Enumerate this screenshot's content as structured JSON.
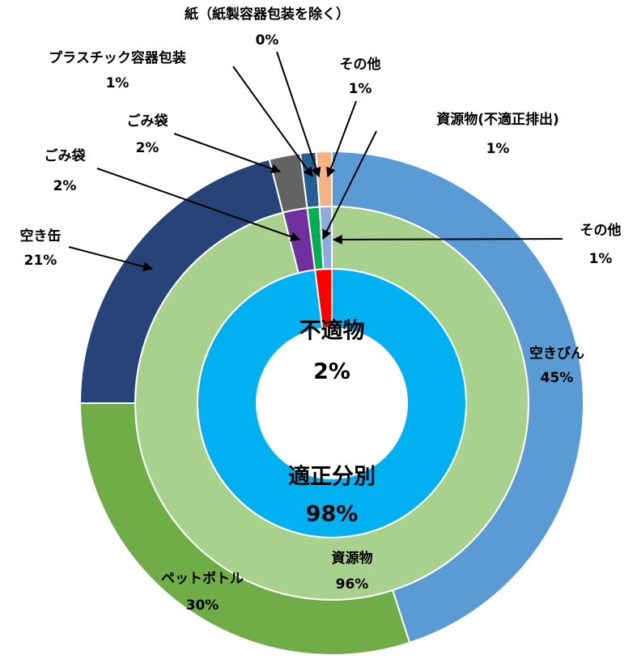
{
  "chart_data": {
    "type": "donut",
    "rings": [
      {
        "categories": [
          "適正分別",
          "不適物"
        ],
        "values": [
          98,
          2
        ],
        "value_labels": [
          "98%",
          "2%"
        ],
        "colors": [
          "#00b0f0",
          "#ff0000"
        ]
      },
      {
        "categories": [
          "資源物",
          "ごみ袋",
          "資源物(不適正排出)",
          "その他"
        ],
        "values": [
          96,
          2,
          1,
          1
        ],
        "value_labels": [
          "96%",
          "2%",
          "1%",
          "1%"
        ],
        "colors": [
          "#a9d18e",
          "#7030a0",
          "#00b050",
          "#8faadc"
        ]
      },
      {
        "categories": [
          "空きびん",
          "ペットボトル",
          "空き缶",
          "ごみ袋",
          "プラスチック容器包装",
          "紙（紙製容器包装を除く）",
          "その他"
        ],
        "values": [
          45,
          30,
          21,
          2,
          1,
          0,
          1
        ],
        "value_labels": [
          "45%",
          "30%",
          "21%",
          "2%",
          "1%",
          "0%",
          "1%"
        ],
        "colors": [
          "#5b9bd5",
          "#70ad47",
          "#264478",
          "#636363",
          "#255e91",
          "#4472c4",
          "#f4b183"
        ]
      }
    ]
  }
}
